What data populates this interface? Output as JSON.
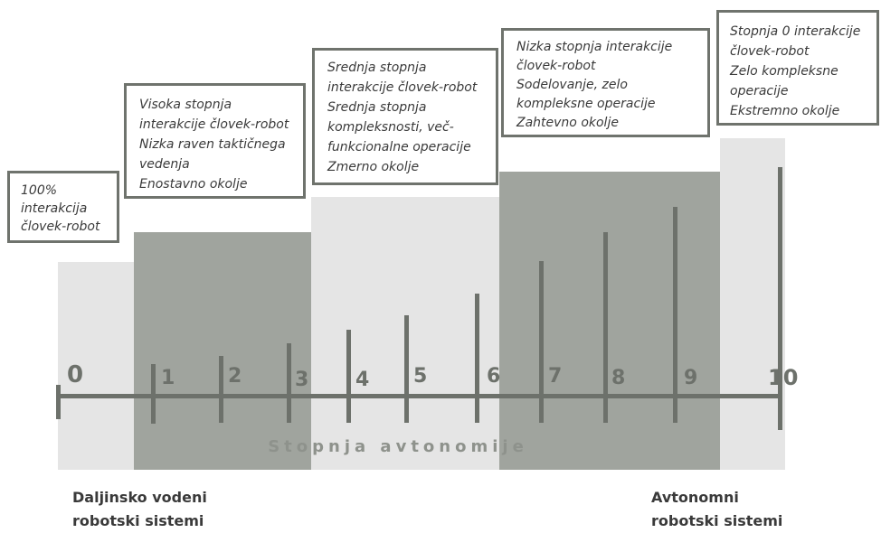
{
  "scale": {
    "title": "Stopnja avtonomije",
    "levels": [
      "0",
      "1",
      "2",
      "3",
      "4",
      "5",
      "6",
      "7",
      "8",
      "9",
      "10"
    ]
  },
  "levels_boxes": [
    {
      "lines": [
        "100%",
        "interakcija",
        "človek-robot"
      ]
    },
    {
      "lines": [
        "Visoka stopnja",
        "interakcije človek-robot",
        "Nizka raven taktičnega",
        "vedenja",
        "Enostavno okolje"
      ]
    },
    {
      "lines": [
        "Srednja stopnja",
        "interakcije človek-robot",
        "Srednja stopnja",
        "kompleksnosti, več-",
        "funkcionalne operacije",
        "Zmerno okolje"
      ]
    },
    {
      "lines": [
        "Nizka stopnja interakcije",
        "človek-robot",
        "Sodelovanje, zelo",
        "kompleksne operacije",
        "Zahtevno okolje"
      ]
    },
    {
      "lines": [
        "Stopnja 0 interakcije",
        "človek-robot",
        "Zelo kompleksne",
        "operacije",
        "Ekstremno okolje"
      ]
    }
  ],
  "ends": {
    "left": [
      "Daljinsko vodeni",
      "robotski sistemi"
    ],
    "right": [
      "Avtonomni",
      "robotski sistemi"
    ]
  },
  "colors": {
    "light_band": "#e5e5e5",
    "dark_band": "#a0a49e",
    "axis": "#6d716b",
    "box_border": "#6f736d"
  }
}
